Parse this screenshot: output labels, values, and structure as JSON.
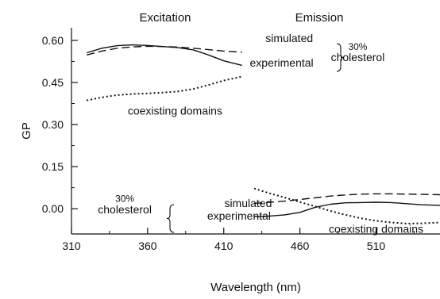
{
  "chart_data": {
    "type": "line",
    "panel_labels": [
      "Excitation",
      "Emission"
    ],
    "xlabel": "Wavelength (nm)",
    "ylabel": "GP",
    "xlim": [
      310,
      552
    ],
    "ylim": [
      -0.09,
      0.645
    ],
    "x_ticks": [
      310,
      360,
      410,
      460,
      510
    ],
    "x_tick_labels": [
      "310",
      "360",
      "410",
      "460",
      "510"
    ],
    "y_ticks": [
      0.0,
      0.15,
      0.3,
      0.45,
      0.6
    ],
    "y_tick_labels": [
      "0.00",
      "0.15",
      "0.30",
      "0.45",
      "0.60"
    ],
    "series": [
      {
        "panel": "Excitation",
        "style": "dashed",
        "x": [
          320,
          330,
          340,
          350,
          360,
          370,
          380,
          390,
          400,
          410,
          422
        ],
        "y": [
          0.548,
          0.562,
          0.572,
          0.577,
          0.579,
          0.578,
          0.576,
          0.572,
          0.567,
          0.562,
          0.558
        ]
      },
      {
        "panel": "Excitation",
        "style": "solid",
        "x": [
          320,
          330,
          340,
          350,
          360,
          370,
          380,
          390,
          400,
          410,
          422
        ],
        "y": [
          0.556,
          0.572,
          0.581,
          0.584,
          0.582,
          0.578,
          0.574,
          0.566,
          0.548,
          0.527,
          0.511
        ]
      },
      {
        "panel": "Excitation",
        "style": "dotted",
        "x": [
          320,
          330,
          340,
          350,
          360,
          370,
          380,
          390,
          400,
          410,
          422
        ],
        "y": [
          0.386,
          0.397,
          0.405,
          0.409,
          0.411,
          0.414,
          0.418,
          0.427,
          0.441,
          0.457,
          0.471
        ]
      },
      {
        "panel": "Emission",
        "style": "dashed",
        "x": [
          430,
          440,
          450,
          460,
          470,
          480,
          490,
          500,
          510,
          520,
          530,
          540,
          552
        ],
        "y": [
          0.019,
          0.023,
          0.027,
          0.033,
          0.039,
          0.045,
          0.049,
          0.052,
          0.053,
          0.053,
          0.052,
          0.051,
          0.05
        ]
      },
      {
        "panel": "Emission",
        "style": "solid",
        "x": [
          430,
          440,
          450,
          460,
          470,
          480,
          490,
          500,
          510,
          520,
          530,
          540,
          552
        ],
        "y": [
          -0.028,
          -0.026,
          -0.022,
          -0.013,
          0.005,
          0.016,
          0.021,
          0.022,
          0.023,
          0.022,
          0.018,
          0.014,
          0.012
        ]
      },
      {
        "panel": "Emission",
        "style": "dotted",
        "x": [
          430,
          440,
          450,
          460,
          470,
          480,
          490,
          500,
          510,
          520,
          530,
          540,
          552
        ],
        "y": [
          0.072,
          0.055,
          0.04,
          0.024,
          0.008,
          -0.008,
          -0.022,
          -0.034,
          -0.043,
          -0.049,
          -0.053,
          -0.052,
          -0.049
        ]
      }
    ],
    "annotations": [
      {
        "text": "simulated",
        "x": 453,
        "y": 0.608
      },
      {
        "text": "experimental",
        "x": 448,
        "y": 0.52
      },
      {
        "text": "30%",
        "x": 498,
        "y": 0.58
      },
      {
        "text": "cholesterol",
        "x": 498,
        "y": 0.54
      },
      {
        "text": "coexisting domains",
        "x": 378,
        "y": 0.349
      },
      {
        "text": "30%",
        "x": 345,
        "y": 0.038
      },
      {
        "text": "cholesterol",
        "x": 345,
        "y": -0.002
      },
      {
        "text": "simulated",
        "x": 426,
        "y": 0.02
      },
      {
        "text": "experimental",
        "x": 420,
        "y": -0.025
      },
      {
        "text": "coexisting domains",
        "x": 510,
        "y": -0.072
      }
    ]
  }
}
